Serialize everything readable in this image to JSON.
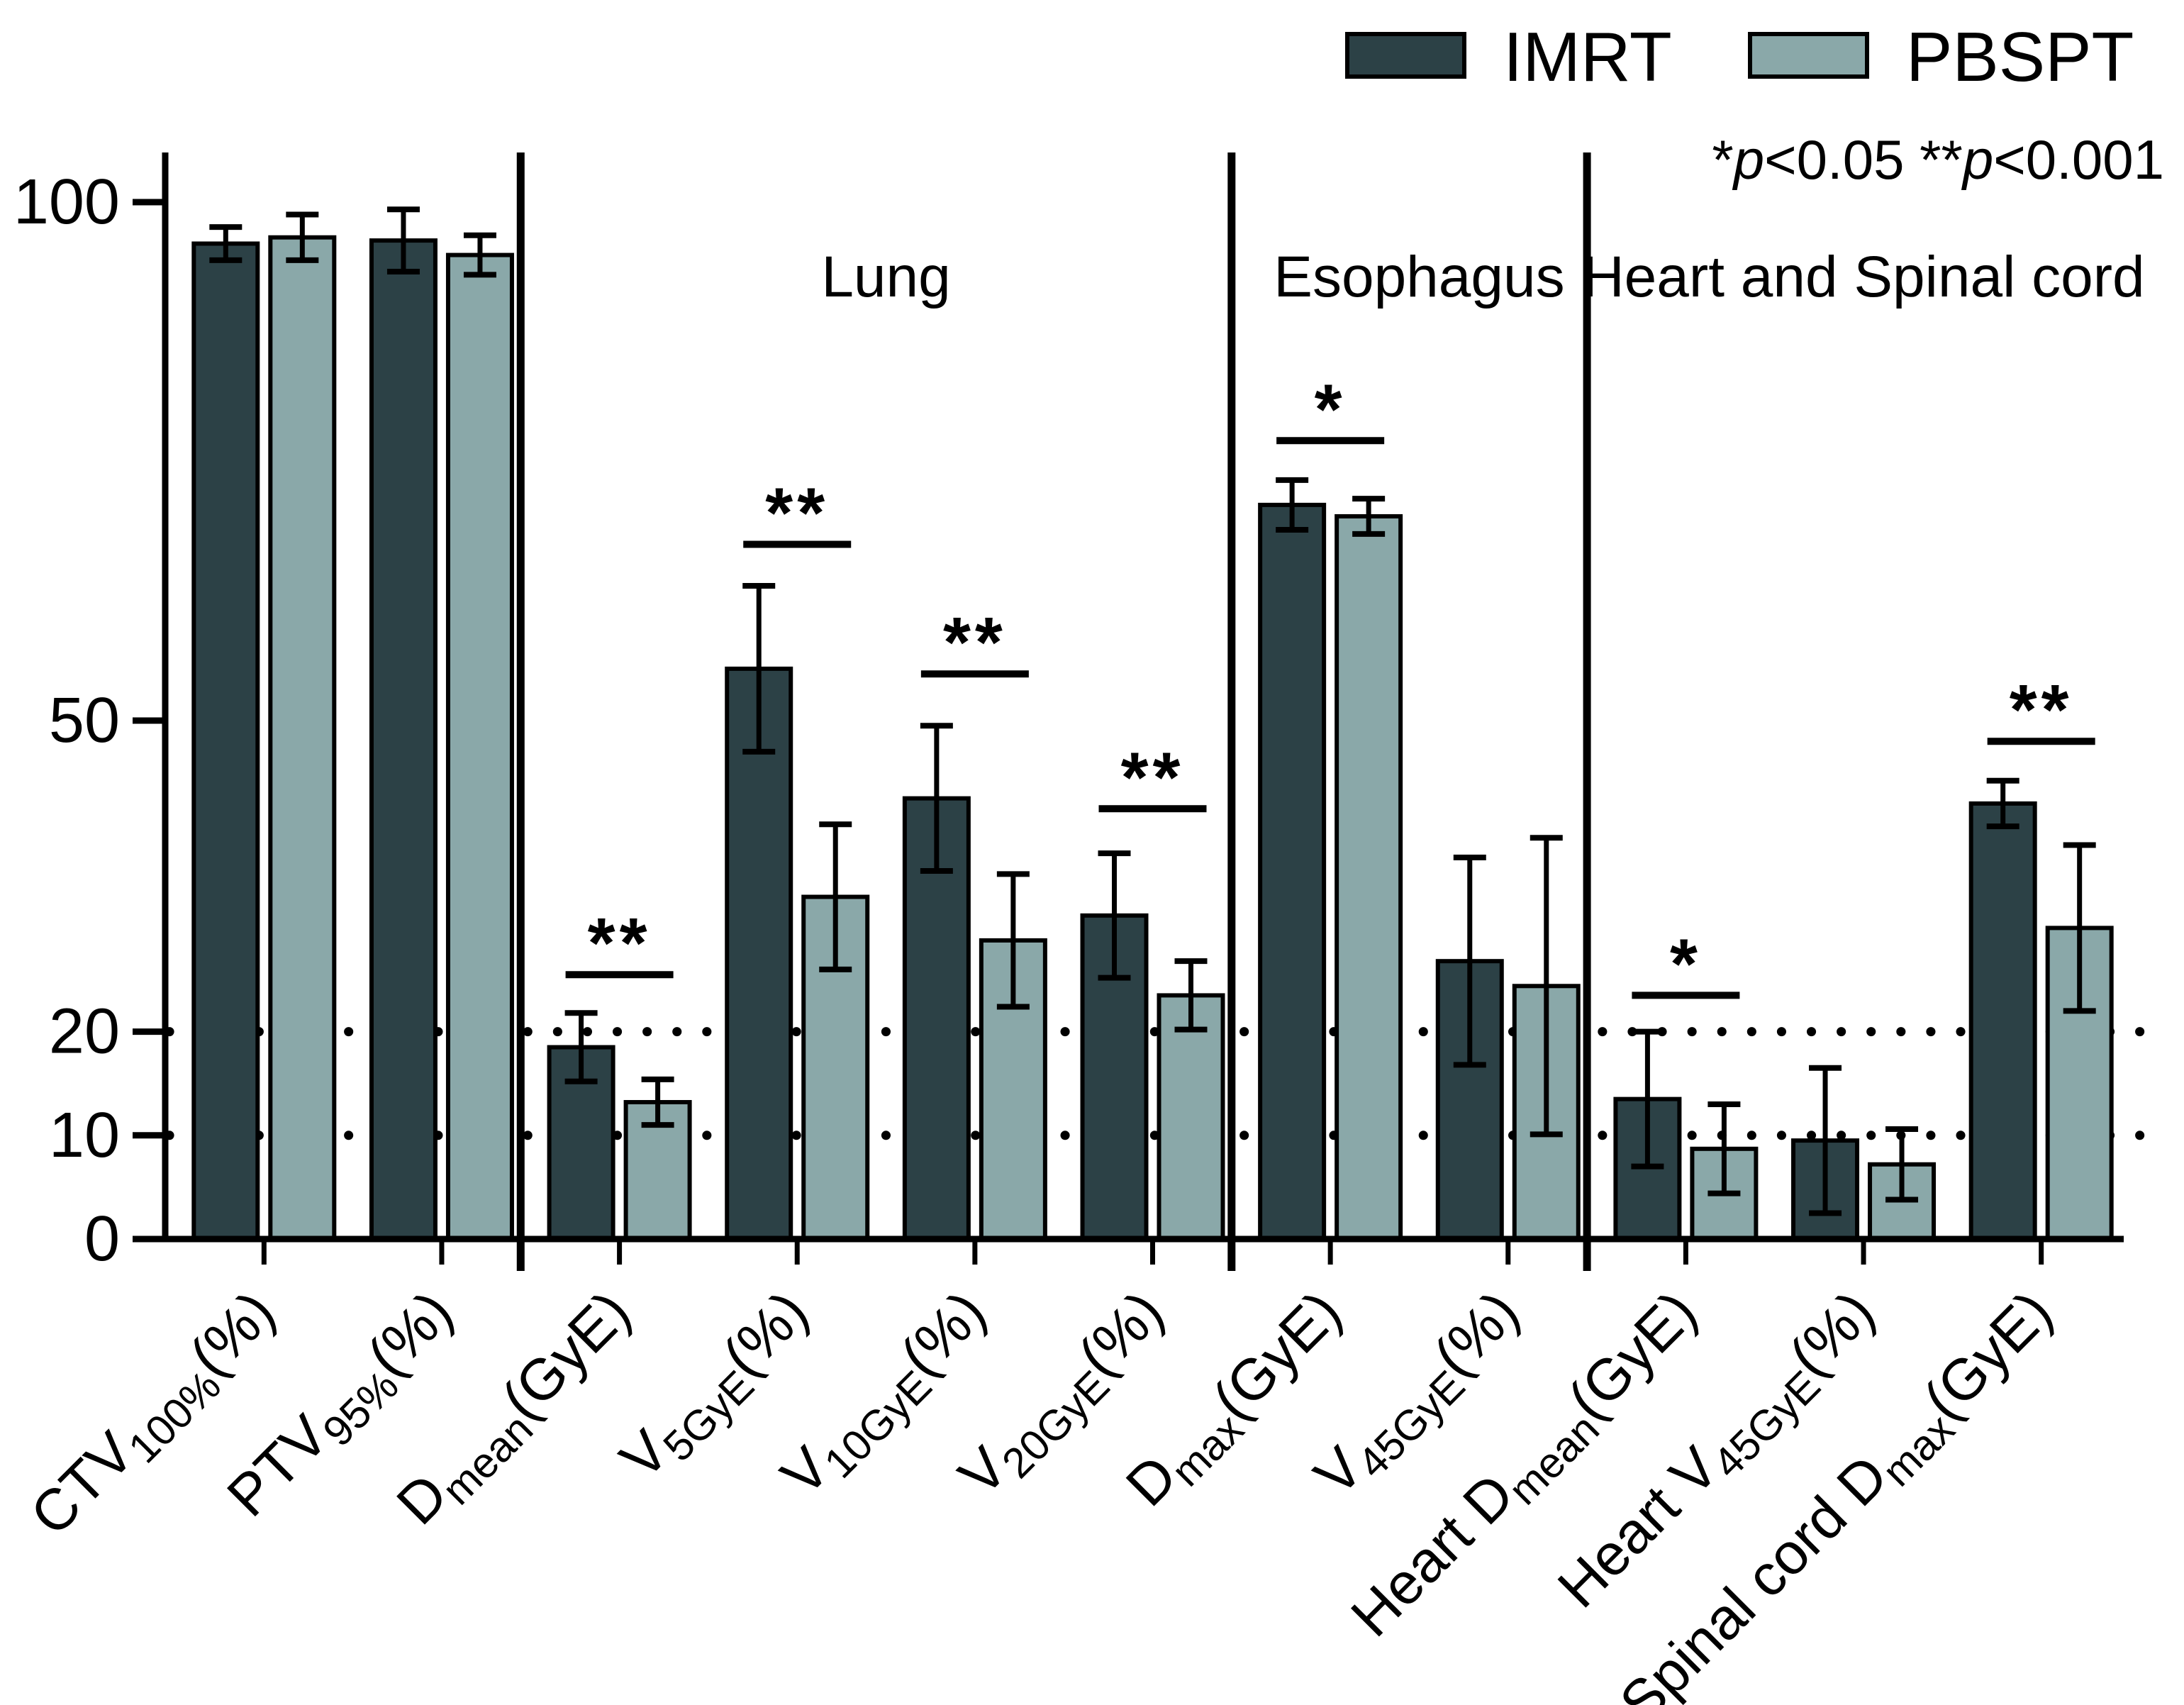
{
  "legend": {
    "items": [
      {
        "label": "IMRT",
        "color": "#2c4146"
      },
      {
        "label": "PBSPT",
        "color": "#8aa8a9"
      }
    ]
  },
  "note_parts": [
    {
      "t": "*"
    },
    {
      "t": "p",
      "italic": true
    },
    {
      "t": "<0.05 **"
    },
    {
      "t": "p",
      "italic": true
    },
    {
      "t": "<0.001"
    }
  ],
  "chart_data": {
    "type": "bar",
    "title": "",
    "xlabel": "",
    "ylabel": "",
    "ylim": [
      0,
      103
    ],
    "yticks": [
      0,
      10,
      20,
      50,
      100
    ],
    "dotted_gridlines": [
      10,
      20
    ],
    "grid": "dotted horizontal at 10 and 20 only",
    "legend_position": "top-right",
    "sections": [
      {
        "label": "Lung",
        "from": 2,
        "to": 5
      },
      {
        "label": "Esophagus",
        "from": 6,
        "to": 7
      },
      {
        "label": "Heart and Spinal cord",
        "from": 8,
        "to": 10
      }
    ],
    "dividers_after_group": [
      1,
      5,
      7
    ],
    "categories": [
      {
        "name": "CTV100%(%)",
        "parts": [
          {
            "t": "CTV"
          },
          {
            "t": "100%",
            "sub": true
          },
          {
            "t": "(%)"
          }
        ]
      },
      {
        "name": "PTV95%(%)",
        "parts": [
          {
            "t": "PTV"
          },
          {
            "t": "95%",
            "sub": true
          },
          {
            "t": "(%)"
          }
        ]
      },
      {
        "name": "Dmean(GyE)",
        "parts": [
          {
            "t": "D"
          },
          {
            "t": "mean",
            "sub": true
          },
          {
            "t": "(GyE)"
          }
        ]
      },
      {
        "name": "V5GyE(%)",
        "parts": [
          {
            "t": "V"
          },
          {
            "t": "5GyE",
            "sub": true
          },
          {
            "t": "(%)"
          }
        ]
      },
      {
        "name": "V10GyE(%)",
        "parts": [
          {
            "t": "V"
          },
          {
            "t": "10GyE",
            "sub": true
          },
          {
            "t": "(%)"
          }
        ]
      },
      {
        "name": "V20GyE(%)",
        "parts": [
          {
            "t": "V"
          },
          {
            "t": "20GyE",
            "sub": true
          },
          {
            "t": "(%)"
          }
        ]
      },
      {
        "name": "Dmax(GyE)",
        "parts": [
          {
            "t": "D"
          },
          {
            "t": "max",
            "sub": true
          },
          {
            "t": "(GyE)"
          }
        ]
      },
      {
        "name": "V45GyE(%)",
        "parts": [
          {
            "t": "V"
          },
          {
            "t": "45GyE",
            "sub": true
          },
          {
            "t": "(%)"
          }
        ]
      },
      {
        "name": "Heart Dmean(GyE)",
        "parts": [
          {
            "t": "Heart D"
          },
          {
            "t": "mean",
            "sub": true
          },
          {
            "t": "(GyE)"
          }
        ]
      },
      {
        "name": "Heart V45GyE(%)",
        "parts": [
          {
            "t": "Heart V"
          },
          {
            "t": "45GyE",
            "sub": true
          },
          {
            "t": "(%)"
          }
        ]
      },
      {
        "name": "Spinal cord Dmax(GyE)",
        "parts": [
          {
            "t": "Spinal cord D"
          },
          {
            "t": "max",
            "sub": true
          },
          {
            "t": "(GyE)"
          }
        ]
      }
    ],
    "series": [
      {
        "name": "IMRT",
        "color": "#2c4146",
        "values": [
          96.0,
          96.3,
          18.5,
          55.0,
          42.5,
          31.2,
          70.8,
          26.8,
          13.5,
          9.5,
          42.0
        ],
        "errors": [
          1.6,
          3.0,
          3.3,
          8.0,
          7.0,
          6.0,
          2.4,
          10.0,
          6.5,
          7.0,
          2.2
        ]
      },
      {
        "name": "PBSPT",
        "color": "#8aa8a9",
        "values": [
          96.6,
          94.9,
          13.2,
          33.0,
          28.8,
          23.5,
          69.7,
          24.4,
          8.7,
          7.2,
          30.0
        ],
        "errors": [
          2.2,
          1.9,
          2.2,
          7.0,
          6.4,
          3.3,
          1.7,
          14.3,
          4.3,
          3.4,
          8.0
        ]
      }
    ],
    "significance": [
      {
        "group": 2,
        "stars": "**",
        "height": 25.5
      },
      {
        "group": 3,
        "stars": "**",
        "height": 67.0
      },
      {
        "group": 4,
        "stars": "**",
        "height": 54.5
      },
      {
        "group": 5,
        "stars": "**",
        "height": 41.5
      },
      {
        "group": 6,
        "stars": "*",
        "height": 77.0
      },
      {
        "group": 8,
        "stars": "*",
        "height": 23.5
      },
      {
        "group": 10,
        "stars": "**",
        "height": 48.0
      }
    ]
  }
}
